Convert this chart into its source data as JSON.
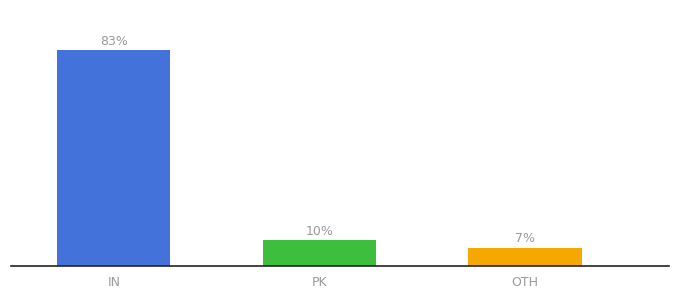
{
  "categories": [
    "IN",
    "PK",
    "OTH"
  ],
  "values": [
    83,
    10,
    7
  ],
  "labels": [
    "83%",
    "10%",
    "7%"
  ],
  "bar_colors": [
    "#4472db",
    "#3dbf3d",
    "#f5a800"
  ],
  "background_color": "#ffffff",
  "text_color": "#999999",
  "label_fontsize": 9,
  "tick_fontsize": 9,
  "ylim": [
    0,
    98
  ],
  "bar_width": 0.55,
  "x_positions": [
    0.5,
    1.5,
    2.5
  ],
  "xlim": [
    0.0,
    3.2
  ]
}
